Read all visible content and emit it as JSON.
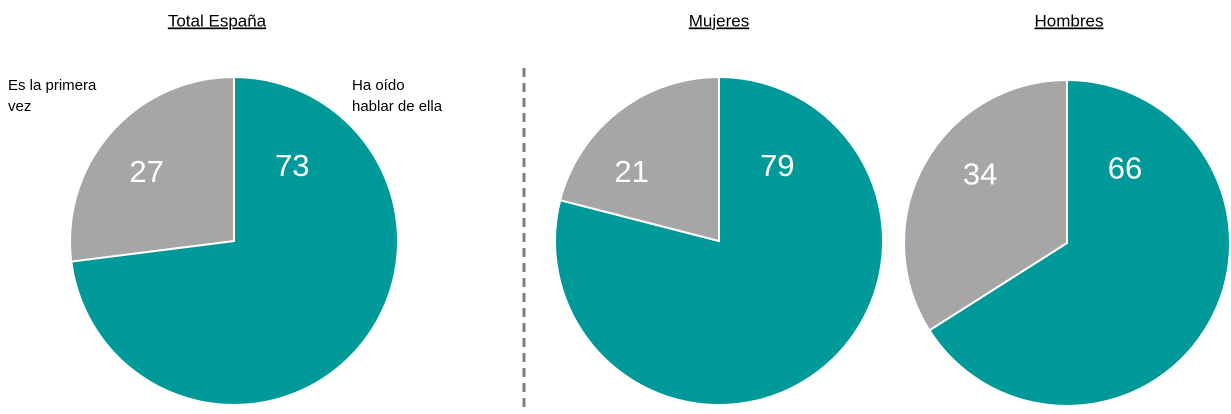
{
  "chart_data": [
    {
      "type": "pie",
      "title": "Total España",
      "categories": [
        "Ha oído hablar de ella",
        "Es la primera vez"
      ],
      "values": [
        73,
        27
      ],
      "colors": [
        "#009999",
        "#a6a6a6"
      ]
    },
    {
      "type": "pie",
      "title": "Mujeres",
      "values": [
        79,
        21
      ],
      "colors": [
        "#009999",
        "#a6a6a6"
      ]
    },
    {
      "type": "pie",
      "title": "Hombres",
      "values": [
        66,
        34
      ],
      "colors": [
        "#009999",
        "#a6a6a6"
      ]
    }
  ]
}
